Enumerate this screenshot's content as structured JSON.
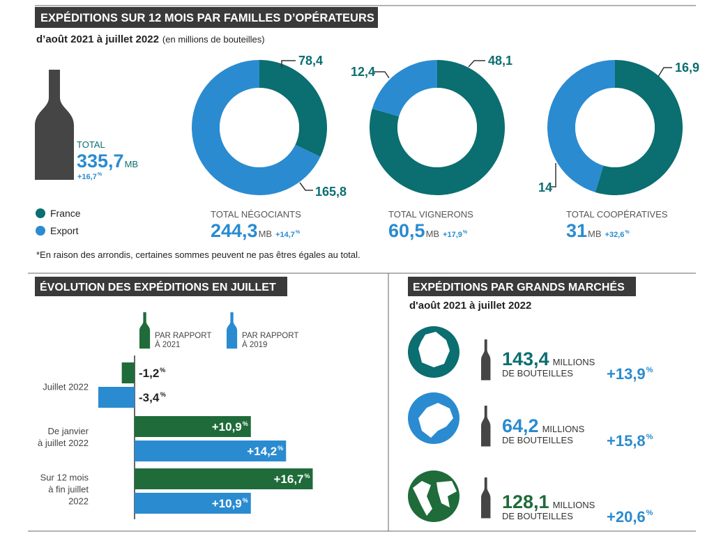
{
  "percent_sign": "%",
  "section1": {
    "title": "EXPÉDITIONS SUR 12 MOIS PAR FAMILLES D’OPÉRATEURS",
    "subtitle": "d’août 2021 à juillet 2022",
    "subtitle_note": "(en millions de bouteilles)",
    "total_label": "TOTAL",
    "total_value": "335,7",
    "total_unit": "MB",
    "total_change": "+16,7",
    "footnote": "*En raison des arrondis, certaines sommes peuvent ne pas êtres égales au total."
  },
  "section2": {
    "title": "ÉVOLUTION DES EXPÉDITIONS EN JUILLET"
  },
  "section3": {
    "title": "EXPÉDITIONS PAR GRANDS MARCHÉS",
    "subtitle": "d'août 2021 à juillet 2022",
    "markets": [
      {
        "value": "143,4",
        "unit": "MILLIONS",
        "unit_line2": "DE BOUTEILLES",
        "change": "+13,9",
        "color": "#0b6e70"
      },
      {
        "value": "64,2",
        "unit": "MILLIONS",
        "unit_line2": "DE BOUTEILLES",
        "change": "+15,8",
        "color": "#2a8bd0"
      },
      {
        "value": "128,1",
        "unit": "MILLIONS",
        "unit_line2": "DE BOUTEILLES",
        "change": "+20,6",
        "color": "#1f6b3a"
      }
    ]
  },
  "chart_data": [
    {
      "type": "pie",
      "donut": true,
      "categories": [
        "France",
        "Export"
      ],
      "values": [
        78.4,
        165.8
      ],
      "value_labels": [
        "78,4",
        "165,8"
      ],
      "colors": [
        "#0b6e70",
        "#2a8bd0"
      ],
      "total_label": "TOTAL NÉGOCIANTS",
      "total_value": "244,3",
      "total_unit": "MB",
      "total_change": "+14,7"
    },
    {
      "type": "pie",
      "donut": true,
      "categories": [
        "France",
        "Export"
      ],
      "values": [
        48.1,
        12.4
      ],
      "value_labels": [
        "48,1",
        "12,4"
      ],
      "colors": [
        "#0b6e70",
        "#2a8bd0"
      ],
      "total_label": "TOTAL VIGNERONS",
      "total_value": "60,5",
      "total_unit": "MB",
      "total_change": "+17,9"
    },
    {
      "type": "pie",
      "donut": true,
      "categories": [
        "France",
        "Export"
      ],
      "values": [
        16.9,
        14
      ],
      "value_labels": [
        "16,9",
        "14"
      ],
      "colors": [
        "#0b6e70",
        "#2a8bd0"
      ],
      "total_label": "TOTAL COOPÉRATIVES",
      "total_value": "31",
      "total_unit": "MB",
      "total_change": "+32,6"
    },
    {
      "type": "bar",
      "orientation": "horizontal",
      "categories": [
        "Juillet 2022",
        "De janvier\nà juillet 2022",
        "Sur 12 mois\nà fin juillet\n2022"
      ],
      "xlim": [
        -5,
        20
      ],
      "series": [
        {
          "name": "PAR RAPPORT\nÀ 2021",
          "color": "#1f6b3a",
          "values": [
            -1.2,
            10.9,
            16.7
          ],
          "value_labels": [
            "-1,2",
            "+10,9",
            "+16,7"
          ]
        },
        {
          "name": "PAR RAPPORT\nÀ 2019",
          "color": "#2a8bd0",
          "values": [
            -3.4,
            14.2,
            10.9
          ],
          "value_labels": [
            "-3,4",
            "+14,2",
            "+10,9"
          ]
        }
      ]
    }
  ]
}
